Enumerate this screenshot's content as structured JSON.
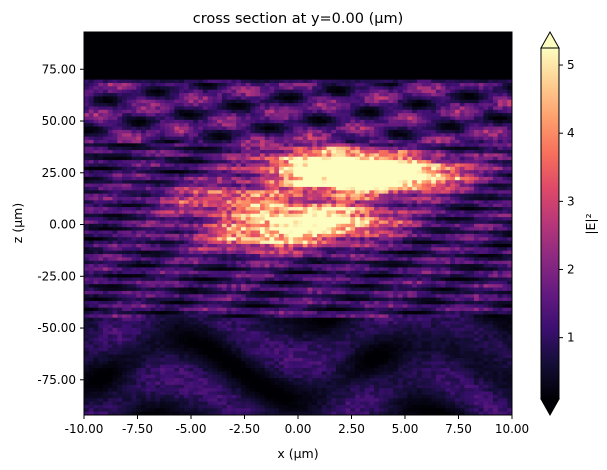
{
  "chart_data": {
    "type": "heatmap",
    "title": "cross section at y=0.00 (μm)",
    "xlabel": "x (μm)",
    "ylabel": "z (μm)",
    "xlim": [
      -10.0,
      10.0
    ],
    "ylim": [
      -92.0,
      93.0
    ],
    "x_ticks": [
      -10.0,
      -7.5,
      -5.0,
      -2.5,
      0.0,
      2.5,
      5.0,
      7.5,
      10.0
    ],
    "x_tick_labels": [
      "-10.00",
      "-7.50",
      "-5.00",
      "-2.50",
      "0.00",
      "2.50",
      "5.00",
      "7.50",
      "10.00"
    ],
    "y_ticks": [
      75.0,
      50.0,
      25.0,
      0.0,
      -25.0,
      -50.0,
      -75.0
    ],
    "y_tick_labels": [
      "75.00",
      "50.00",
      "25.00",
      "0.00",
      "-25.00",
      "-50.00",
      "-75.00"
    ],
    "colorbar": {
      "label": "|E|²",
      "colormap": "magma",
      "range": [
        0.1,
        5.25
      ],
      "extend": "both",
      "ticks": [
        1,
        2,
        3,
        4,
        5
      ],
      "tick_labels": [
        "1",
        "2",
        "3",
        "4",
        "5"
      ],
      "under_color": "#000004",
      "over_color": "#fcfdbf"
    },
    "field_region_zlim": [
      -92.0,
      70.0
    ],
    "hotspots": [
      {
        "x": 1.0,
        "z": 2.0,
        "peak": 5.2
      },
      {
        "x": 3.0,
        "z": 22.0,
        "peak": 5.1
      },
      {
        "x": 1.5,
        "z": 30.0,
        "peak": 4.2
      },
      {
        "x": 4.5,
        "z": 25.0,
        "peak": 3.5
      },
      {
        "x": -1.5,
        "z": -6.0,
        "peak": 3.0
      },
      {
        "x": -3.0,
        "z": 12.0,
        "peak": 2.5
      }
    ]
  }
}
